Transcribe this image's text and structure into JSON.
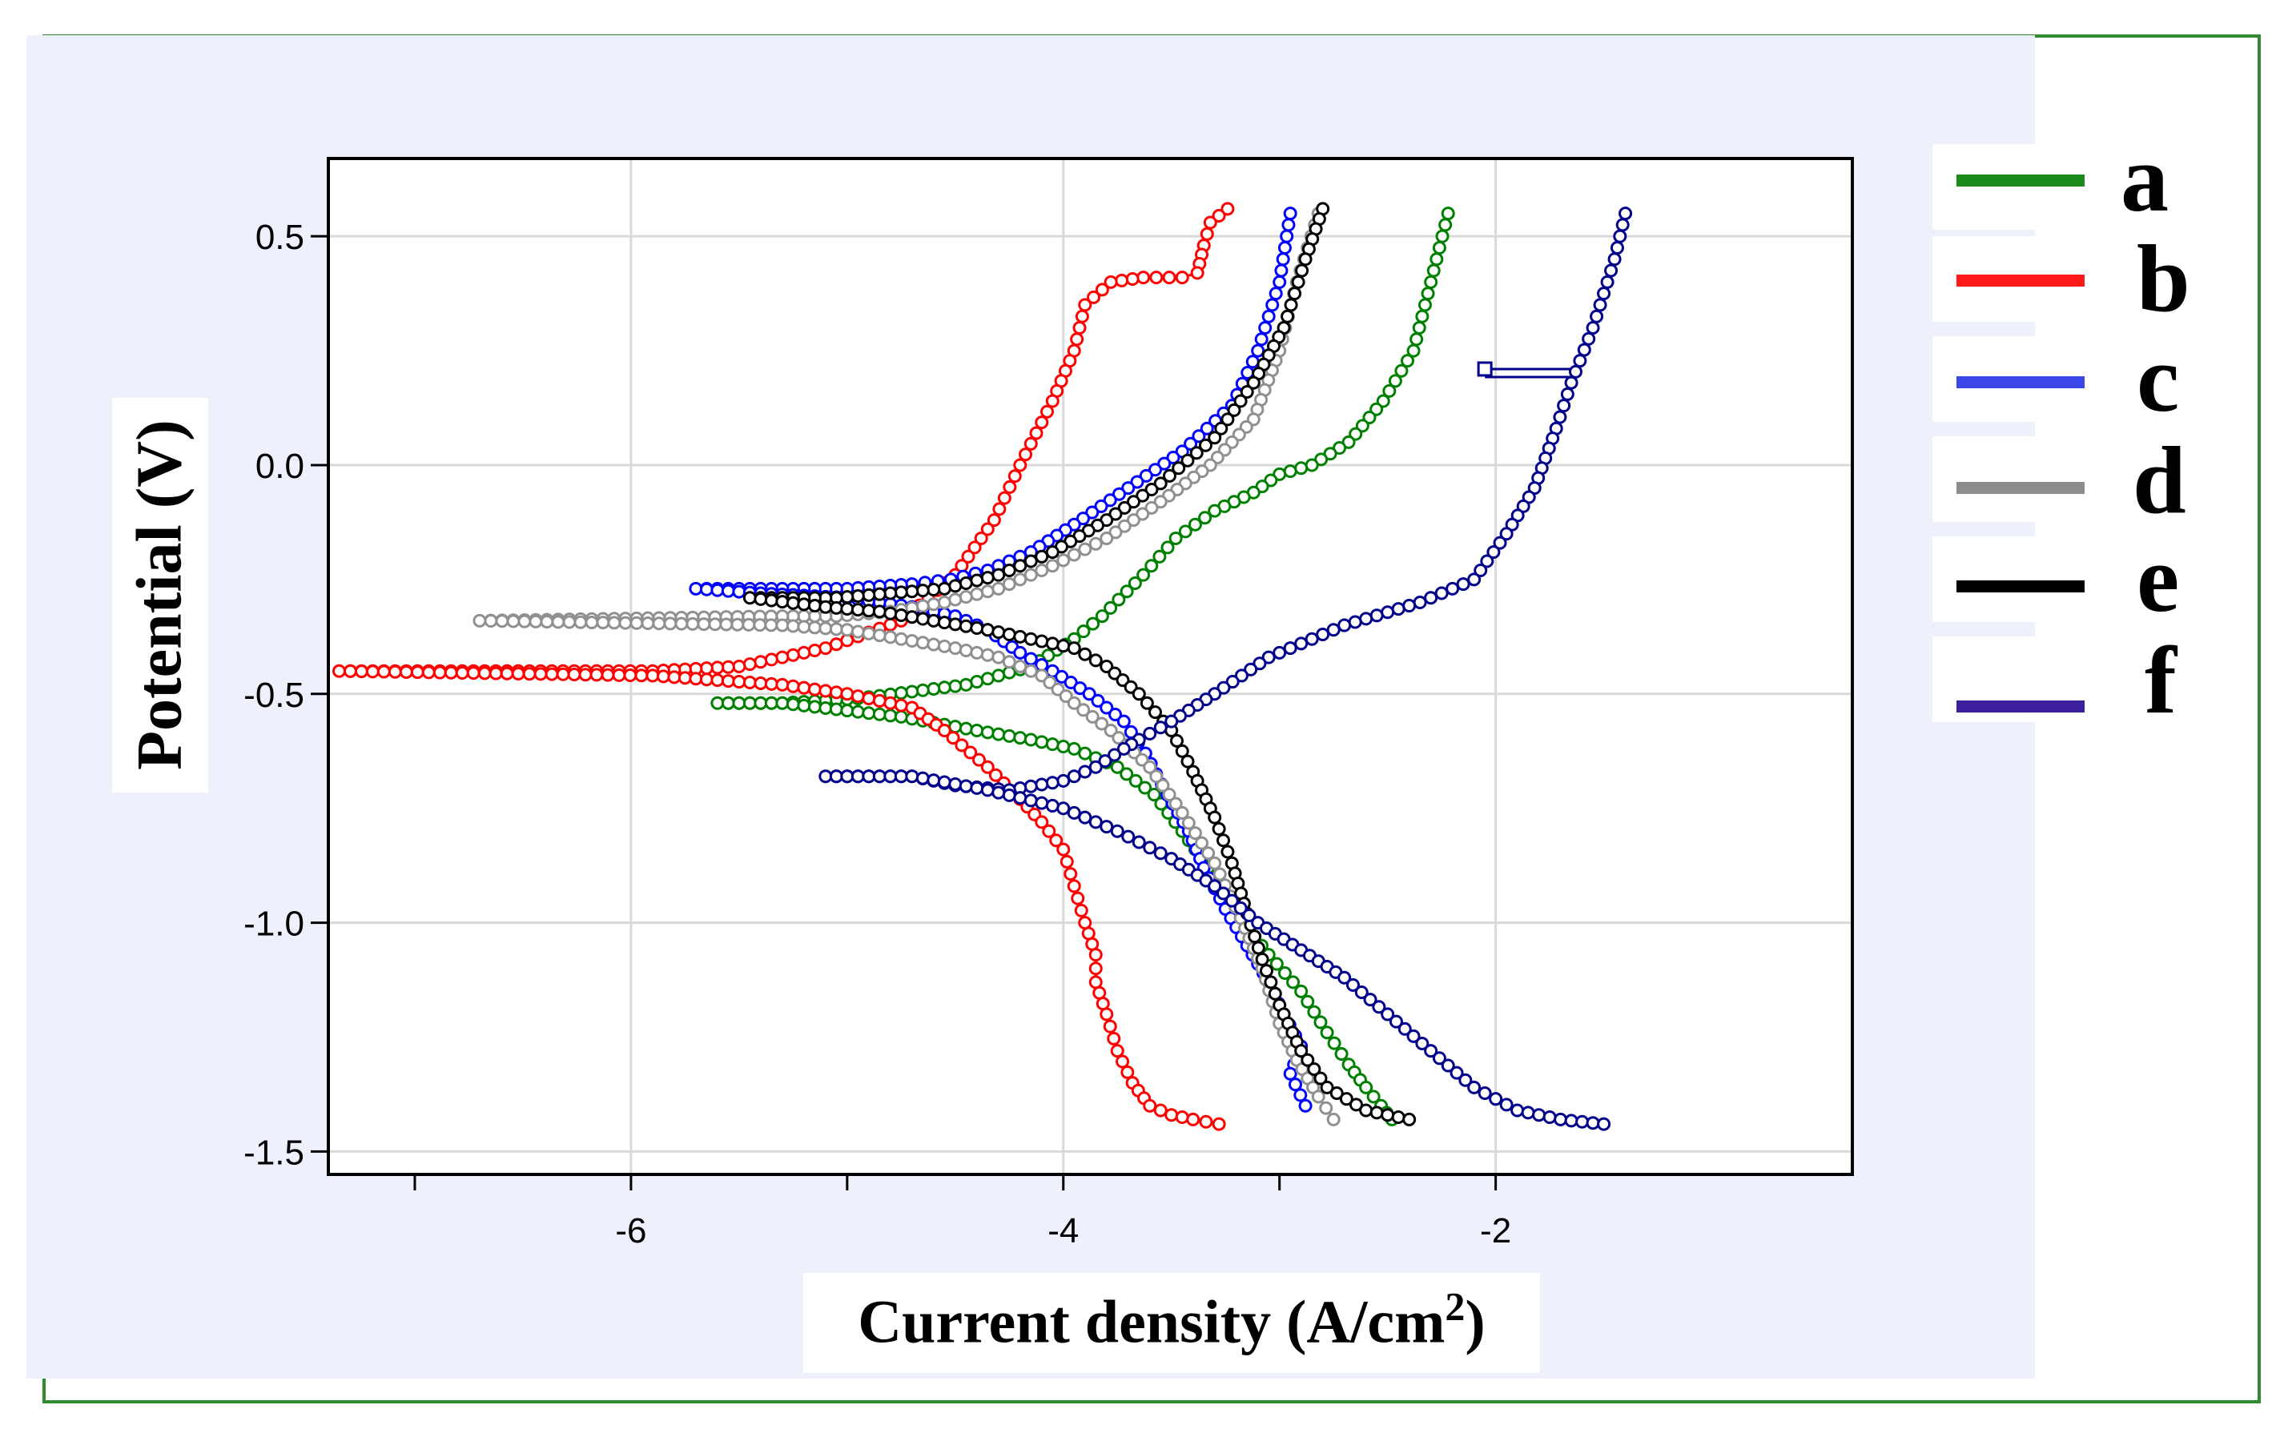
{
  "chart_data": {
    "type": "scatter",
    "xlabel_main": "Current density (A/cm",
    "xlabel_sup": "2",
    "xlabel_close": ")",
    "ylabel": "Potential (V)",
    "xlim": [
      -7.4,
      -0.35
    ],
    "ylim": [
      -1.55,
      0.67
    ],
    "xticks": [
      -6,
      -4,
      -2
    ],
    "xtick_labels": [
      "-6",
      "-4",
      "-2"
    ],
    "yticks": [
      0.5,
      0.0,
      -0.5,
      -1.0,
      -1.5
    ],
    "ytick_labels": [
      "0.5",
      "0.0",
      "-0.5",
      "-1.0",
      "-1.5"
    ],
    "grid": true,
    "legend_position": "right",
    "series": [
      {
        "name": "a",
        "color": "#008000",
        "marker": "circle",
        "x": [
          -2.22,
          -2.3,
          -2.38,
          -2.52,
          -2.68,
          -2.85,
          -3.0,
          -3.12,
          -3.3,
          -3.48,
          -3.63,
          -3.82,
          -3.95,
          -4.15,
          -4.45,
          -4.95,
          -5.3,
          -5.6,
          -5.3,
          -4.75,
          -4.4,
          -4.15,
          -3.95,
          -3.75,
          -3.58,
          -3.45,
          -3.3,
          -3.18,
          -3.05,
          -2.9,
          -2.78,
          -2.68,
          -2.6,
          -2.53,
          -2.48
        ],
        "y": [
          0.55,
          0.4,
          0.25,
          0.14,
          0.05,
          0.0,
          -0.02,
          -0.06,
          -0.1,
          -0.16,
          -0.24,
          -0.33,
          -0.38,
          -0.44,
          -0.48,
          -0.51,
          -0.52,
          -0.52,
          -0.52,
          -0.55,
          -0.58,
          -0.6,
          -0.62,
          -0.66,
          -0.72,
          -0.8,
          -0.9,
          -0.99,
          -1.07,
          -1.15,
          -1.24,
          -1.31,
          -1.36,
          -1.4,
          -1.43
        ]
      },
      {
        "name": "b",
        "color": "#ff0000",
        "marker": "circle",
        "x": [
          -3.24,
          -3.32,
          -3.35,
          -3.38,
          -3.45,
          -3.63,
          -3.78,
          -3.9,
          -3.95,
          -4.05,
          -4.2,
          -4.32,
          -4.5,
          -4.75,
          -5.1,
          -5.5,
          -5.9,
          -7.35,
          -5.9,
          -5.6,
          -5.3,
          -5.0,
          -4.7,
          -4.55,
          -4.35,
          -4.2,
          -4.1,
          -4.0,
          -3.95,
          -3.9,
          -3.85,
          -3.85,
          -3.8,
          -3.75,
          -3.68,
          -3.6,
          -3.5,
          -3.4,
          -3.28
        ],
        "y": [
          0.56,
          0.53,
          0.48,
          0.42,
          0.41,
          0.41,
          0.4,
          0.35,
          0.25,
          0.14,
          0.0,
          -0.12,
          -0.24,
          -0.34,
          -0.4,
          -0.44,
          -0.45,
          -0.45,
          -0.46,
          -0.47,
          -0.48,
          -0.5,
          -0.53,
          -0.58,
          -0.66,
          -0.73,
          -0.78,
          -0.84,
          -0.92,
          -1.0,
          -1.07,
          -1.13,
          -1.2,
          -1.28,
          -1.35,
          -1.4,
          -1.42,
          -1.43,
          -1.44
        ]
      },
      {
        "name": "c",
        "color": "#0000ff",
        "marker": "circle",
        "x": [
          -2.95,
          -3.0,
          -3.1,
          -3.22,
          -3.45,
          -3.7,
          -3.95,
          -4.15,
          -4.35,
          -4.52,
          -4.7,
          -5.0,
          -5.3,
          -5.55,
          -5.7,
          -5.4,
          -5.0,
          -4.7,
          -4.5,
          -4.35,
          -4.2,
          -4.05,
          -3.88,
          -3.72,
          -3.62,
          -3.52,
          -3.42,
          -3.35,
          -3.25,
          -3.15,
          -3.05,
          -2.98,
          -2.9,
          -2.95,
          -2.88
        ],
        "y": [
          0.55,
          0.4,
          0.25,
          0.13,
          0.03,
          -0.05,
          -0.13,
          -0.19,
          -0.23,
          -0.25,
          -0.26,
          -0.27,
          -0.27,
          -0.27,
          -0.27,
          -0.28,
          -0.29,
          -0.31,
          -0.33,
          -0.36,
          -0.41,
          -0.45,
          -0.5,
          -0.56,
          -0.63,
          -0.72,
          -0.8,
          -0.88,
          -0.97,
          -1.05,
          -1.13,
          -1.2,
          -1.27,
          -1.33,
          -1.4
        ]
      },
      {
        "name": "d",
        "color": "#909090",
        "marker": "circle",
        "x": [
          -2.82,
          -2.92,
          -3.0,
          -3.12,
          -3.32,
          -3.55,
          -3.8,
          -4.05,
          -4.3,
          -4.55,
          -4.8,
          -5.05,
          -5.3,
          -6.7,
          -5.3,
          -5.0,
          -4.75,
          -4.5,
          -4.3,
          -4.1,
          -3.95,
          -3.78,
          -3.6,
          -3.45,
          -3.3,
          -3.18,
          -3.08,
          -3.0,
          -2.92,
          -2.82,
          -2.75
        ],
        "y": [
          0.55,
          0.4,
          0.25,
          0.1,
          0.0,
          -0.08,
          -0.16,
          -0.22,
          -0.27,
          -0.3,
          -0.32,
          -0.33,
          -0.33,
          -0.34,
          -0.35,
          -0.36,
          -0.38,
          -0.4,
          -0.42,
          -0.46,
          -0.52,
          -0.58,
          -0.66,
          -0.76,
          -0.87,
          -0.99,
          -1.1,
          -1.22,
          -1.3,
          -1.38,
          -1.43
        ]
      },
      {
        "name": "e",
        "color": "#000000",
        "marker": "circle",
        "x": [
          -2.8,
          -2.88,
          -2.98,
          -3.12,
          -3.3,
          -3.55,
          -3.8,
          -4.05,
          -4.3,
          -4.55,
          -4.8,
          -5.05,
          -5.3,
          -5.45,
          -5.1,
          -4.85,
          -4.6,
          -4.35,
          -4.15,
          -3.95,
          -3.8,
          -3.65,
          -3.5,
          -3.4,
          -3.3,
          -3.22,
          -3.15,
          -3.08,
          -3.0,
          -2.9,
          -2.78,
          -2.6,
          -2.4
        ],
        "y": [
          0.56,
          0.45,
          0.3,
          0.18,
          0.06,
          -0.04,
          -0.12,
          -0.19,
          -0.24,
          -0.27,
          -0.28,
          -0.29,
          -0.29,
          -0.29,
          -0.31,
          -0.32,
          -0.34,
          -0.36,
          -0.38,
          -0.4,
          -0.44,
          -0.5,
          -0.58,
          -0.67,
          -0.77,
          -0.87,
          -0.98,
          -1.08,
          -1.18,
          -1.28,
          -1.36,
          -1.41,
          -1.43
        ]
      },
      {
        "name": "f",
        "color": "#00008b",
        "marker": "circle",
        "x": [
          -1.4,
          -1.45,
          -1.55,
          -1.65,
          -1.72,
          -1.82,
          -1.95,
          -2.1,
          -2.35,
          -2.7,
          -3.05,
          -3.3,
          -3.5,
          -3.65,
          -3.72,
          -3.85,
          -4.0,
          -4.25,
          -4.5,
          -4.7,
          -5.1,
          -4.7,
          -4.35,
          -4.0,
          -3.75,
          -3.5,
          -3.3,
          -3.1,
          -2.9,
          -2.7,
          -2.5,
          -2.3,
          -2.1,
          -1.9,
          -1.7,
          -1.5
        ],
        "y": [
          0.55,
          0.45,
          0.3,
          0.18,
          0.08,
          -0.05,
          -0.15,
          -0.25,
          -0.3,
          -0.35,
          -0.42,
          -0.5,
          -0.56,
          -0.6,
          -0.62,
          -0.66,
          -0.69,
          -0.71,
          -0.7,
          -0.68,
          -0.68,
          -0.68,
          -0.71,
          -0.75,
          -0.8,
          -0.86,
          -0.92,
          -1.0,
          -1.06,
          -1.12,
          -1.2,
          -1.28,
          -1.36,
          -1.41,
          -1.43,
          -1.44
        ]
      }
    ],
    "annotations": [
      {
        "series": "f",
        "type": "square-marker-spike",
        "x_from": -2.05,
        "x_to": -1.65,
        "y": 0.21
      }
    ]
  },
  "legend": {
    "items": [
      {
        "label": "a",
        "color": "#1a8a1a"
      },
      {
        "label": "b",
        "color": "#ff1a1a"
      },
      {
        "label": "c",
        "color": "#3a46e6"
      },
      {
        "label": "d",
        "color": "#8c8c8c"
      },
      {
        "label": "e",
        "color": "#000000"
      },
      {
        "label": "f",
        "color": "#3b1f9c"
      }
    ]
  }
}
